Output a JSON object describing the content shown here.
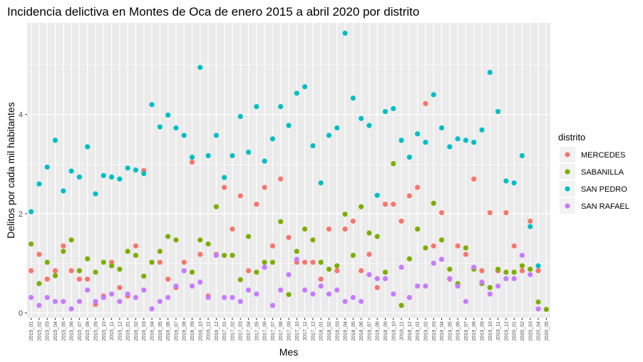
{
  "chart_data": {
    "type": "scatter",
    "title": "Incidencia delictiva en Montes de Oca de enero 2015 a abril 2020 por distrito",
    "xlabel": "Mes",
    "ylabel": "Delitos por cada mil habitantes",
    "ylim": [
      -0.1,
      5.85
    ],
    "yticks": [
      0,
      2,
      4
    ],
    "grid": true,
    "legend_title": "distrito",
    "legend_position": "right",
    "categories": [
      "2015_01",
      "2015_02",
      "2015_03",
      "2015_04",
      "2015_05",
      "2015_06",
      "2015_07",
      "2015_08",
      "2015_09",
      "2015_10",
      "2015_11",
      "2015_12",
      "2016_01",
      "2016_02",
      "2016_03",
      "2016_04",
      "2016_05",
      "2016_06",
      "2016_07",
      "2016_08",
      "2016_09",
      "2016_10",
      "2016_11",
      "2016_12",
      "2017_01",
      "2017_02",
      "2017_03",
      "2017_04",
      "2017_05",
      "2017_06",
      "2017_07",
      "2017_08",
      "2017_09",
      "2017_10",
      "2017_11",
      "2017_12",
      "2018_01",
      "2018_02",
      "2018_03",
      "2018_04",
      "2018_05",
      "2018_06",
      "2018_07",
      "2018_08",
      "2018_09",
      "2018_10",
      "2018_11",
      "2018_12",
      "2019_01",
      "2019_02",
      "2019_03",
      "2019_04",
      "2019_05",
      "2019_06",
      "2019_07",
      "2019_08",
      "2019_09",
      "2019_10",
      "2019_11",
      "2019_12",
      "2020_01",
      "2020_02",
      "2020_03",
      "2020_04",
      "2020_05"
    ],
    "series": [
      {
        "name": "MERCEDES",
        "color": "#F8766D",
        "values": [
          0.85,
          1.18,
          0.68,
          0.85,
          1.35,
          0.85,
          0.68,
          0.68,
          0.17,
          0.34,
          1.02,
          0.51,
          0.34,
          1.35,
          2.87,
          1.02,
          1.02,
          0.68,
          0.51,
          1.02,
          3.04,
          1.18,
          0.34,
          1.18,
          2.53,
          1.69,
          2.36,
          0.85,
          2.19,
          2.53,
          1.35,
          2.7,
          1.52,
          1.02,
          1.02,
          1.02,
          0.68,
          1.69,
          0.85,
          1.69,
          1.85,
          0.85,
          1.18,
          0.51,
          2.19,
          2.19,
          1.85,
          2.36,
          2.53,
          4.22,
          1.35,
          2.02,
          0.68,
          1.35,
          1.18,
          2.7,
          0.85,
          2.02,
          0.85,
          2.02,
          1.35,
          0.85,
          1.85,
          0.85,
          null
        ]
      },
      {
        "name": "SABANILLA",
        "color": "#7CAE00",
        "values": [
          1.39,
          0.59,
          1.02,
          0.75,
          1.24,
          1.47,
          0.85,
          1.09,
          0.82,
          1.02,
          0.95,
          0.88,
          1.24,
          1.16,
          0.74,
          1.02,
          1.24,
          1.54,
          1.47,
          0.85,
          0.82,
          1.47,
          1.39,
          2.14,
          1.16,
          1.16,
          0.67,
          1.54,
          0.82,
          1.02,
          1.02,
          1.84,
          0.37,
          1.24,
          1.69,
          1.47,
          1.02,
          0.88,
          0.95,
          1.99,
          1.16,
          2.14,
          1.61,
          1.54,
          0.82,
          3.01,
          0.15,
          1.09,
          1.69,
          1.31,
          2.21,
          1.47,
          0.88,
          0.59,
          1.31,
          0.88,
          0.59,
          0.51,
          0.88,
          0.82,
          0.82,
          0.95,
          0.88,
          0.22,
          0.07
        ]
      },
      {
        "name": "SAN PEDRO",
        "color": "#00BFC4",
        "values": [
          2.04,
          2.6,
          2.94,
          3.48,
          2.46,
          2.86,
          2.74,
          3.35,
          2.4,
          2.77,
          2.74,
          2.7,
          2.92,
          2.88,
          2.81,
          4.2,
          3.75,
          3.99,
          3.73,
          3.58,
          3.14,
          4.95,
          3.17,
          3.58,
          2.73,
          3.17,
          3.96,
          3.24,
          4.16,
          3.06,
          3.51,
          4.16,
          3.78,
          4.43,
          4.56,
          3.37,
          2.62,
          3.58,
          3.73,
          5.64,
          4.33,
          3.92,
          3.78,
          2.37,
          4.06,
          4.12,
          3.48,
          3.14,
          3.61,
          3.44,
          4.4,
          3.73,
          3.35,
          3.51,
          3.48,
          3.44,
          3.69,
          4.85,
          4.06,
          2.66,
          2.62,
          3.17,
          1.74,
          0.95,
          null
        ]
      },
      {
        "name": "SAN RAFAEL",
        "color": "#C77CFF",
        "values": [
          0.31,
          0.15,
          0.31,
          0.23,
          0.23,
          0.08,
          0.23,
          0.46,
          0.23,
          0.31,
          0.38,
          0.23,
          0.38,
          0.31,
          0.46,
          0.08,
          0.23,
          0.31,
          0.54,
          0.85,
          0.54,
          0.62,
          0.31,
          1.16,
          0.31,
          0.31,
          0.23,
          0.46,
          0.38,
          0.92,
          0.15,
          0.46,
          0.77,
          1.08,
          0.46,
          0.38,
          0.54,
          0.38,
          0.46,
          0.23,
          0.31,
          0.23,
          0.77,
          0.69,
          0.69,
          0.38,
          0.92,
          0.31,
          0.54,
          0.54,
          1.0,
          1.08,
          0.69,
          0.54,
          0.23,
          0.92,
          0.62,
          0.38,
          0.54,
          0.69,
          0.69,
          1.16,
          0.77,
          0.08,
          null
        ]
      }
    ]
  }
}
